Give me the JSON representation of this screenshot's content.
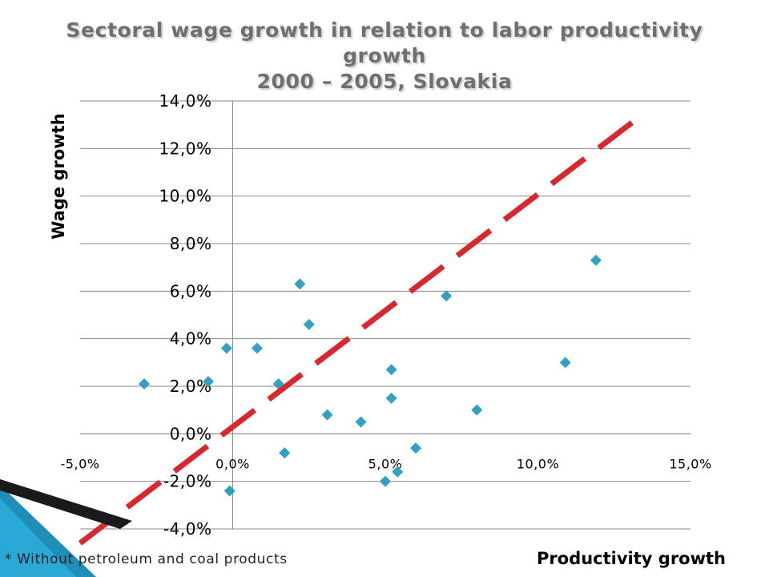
{
  "chart_data": {
    "type": "scatter",
    "title": "Sectoral wage growth in relation to labor productivity growth",
    "subtitle": "2000 – 2005, Slovakia",
    "xlabel": "Productivity growth",
    "ylabel": "Wage growth",
    "xlim": [
      -5,
      15
    ],
    "ylim": [
      -4,
      14
    ],
    "x_ticks": [
      -5,
      0,
      5,
      10,
      15
    ],
    "x_tick_labels": [
      "-5,0%",
      "0,0%",
      "5,0%",
      "10,0%",
      "15,0%"
    ],
    "y_ticks": [
      -4,
      -2,
      0,
      2,
      4,
      6,
      8,
      10,
      12,
      14
    ],
    "y_tick_labels": [
      "-4,0%",
      "-2,0%",
      "0,0%",
      "2,0%",
      "4,0%",
      "6,0%",
      "8,0%",
      "10,0%",
      "12,0%",
      "14,0%"
    ],
    "grid": true,
    "marker_color": "#31a1c2",
    "trend_line_color": "#d7282f",
    "trend_line": {
      "x": [
        -5,
        13.5
      ],
      "y": [
        -4.6,
        13.5
      ]
    },
    "points": [
      {
        "x": -2.9,
        "y": 2.1
      },
      {
        "x": -0.8,
        "y": 2.2
      },
      {
        "x": -0.2,
        "y": 3.6
      },
      {
        "x": -0.1,
        "y": -2.4
      },
      {
        "x": 0.8,
        "y": 3.6
      },
      {
        "x": 1.5,
        "y": 2.1
      },
      {
        "x": 1.7,
        "y": -0.8
      },
      {
        "x": 2.2,
        "y": 6.3
      },
      {
        "x": 2.5,
        "y": 4.6
      },
      {
        "x": 3.1,
        "y": 0.8
      },
      {
        "x": 4.2,
        "y": 0.5
      },
      {
        "x": 5.0,
        "y": -2.0
      },
      {
        "x": 5.2,
        "y": 2.7
      },
      {
        "x": 5.2,
        "y": 1.5
      },
      {
        "x": 5.4,
        "y": -1.6
      },
      {
        "x": 6.0,
        "y": -0.6
      },
      {
        "x": 7.0,
        "y": 5.8
      },
      {
        "x": 8.0,
        "y": 1.0
      },
      {
        "x": 10.9,
        "y": 3.0
      },
      {
        "x": 11.9,
        "y": 7.3
      }
    ]
  },
  "footnote": "* Without petroleum and coal products"
}
